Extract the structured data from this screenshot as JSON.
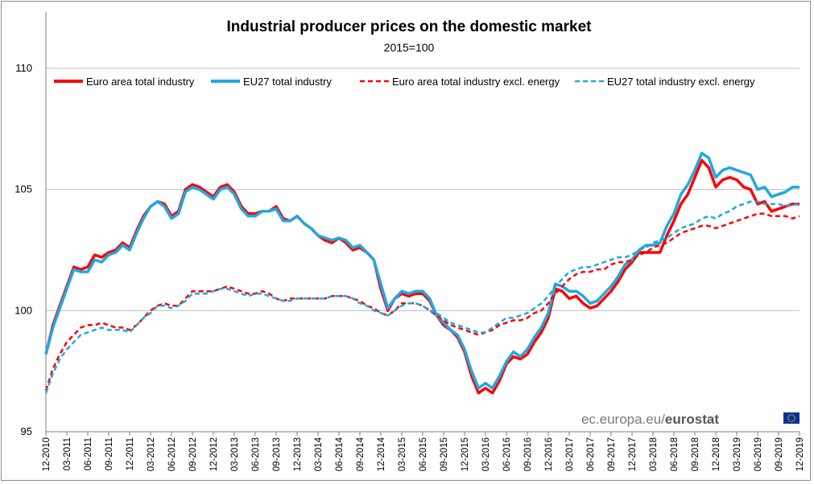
{
  "source": {
    "plain": "ec.europa.eu/",
    "bold": "eurostat"
  },
  "chart_data": {
    "type": "line",
    "title": "Industrial producer prices on the domestic market",
    "subtitle": "2015=100",
    "xlabel": "",
    "ylabel": "",
    "ylim": [
      95,
      110
    ],
    "yticks": [
      95,
      100,
      105,
      110
    ],
    "grid": true,
    "legend_position": "top",
    "start_month": "12-2010",
    "end_month": "12-2019",
    "xtick_labels": [
      "12-2010",
      "03-2011",
      "06-2011",
      "09-2011",
      "12-2011",
      "03-2012",
      "06-2012",
      "09-2012",
      "12-2012",
      "03-2013",
      "06-2013",
      "09-2013",
      "12-2013",
      "03-2014",
      "06-2014",
      "09-2014",
      "12-2014",
      "03-2015",
      "06-2015",
      "09-2015",
      "12-2015",
      "03-2016",
      "06-2016",
      "09-2016",
      "12-2016",
      "03-2017",
      "06-2017",
      "09-2017",
      "12-2017",
      "03-2018",
      "06-2018",
      "09-2018",
      "12-2018",
      "03-2019",
      "06-2019",
      "09-2019",
      "12-2019"
    ],
    "series": [
      {
        "name": "Euro area total industry",
        "color": "#ff0000",
        "dash": "solid",
        "values": [
          98.2,
          99.4,
          100.2,
          101.0,
          101.8,
          101.7,
          101.8,
          102.3,
          102.2,
          102.4,
          102.5,
          102.8,
          102.6,
          103.3,
          103.9,
          104.3,
          104.5,
          104.4,
          103.9,
          104.1,
          105.0,
          105.2,
          105.1,
          104.9,
          104.7,
          105.1,
          105.2,
          104.9,
          104.3,
          104.0,
          104.0,
          104.1,
          104.1,
          104.3,
          103.8,
          103.7,
          103.9,
          103.6,
          103.4,
          103.1,
          102.9,
          102.8,
          103.0,
          102.8,
          102.5,
          102.6,
          102.4,
          102.1,
          100.9,
          100.0,
          100.5,
          100.7,
          100.6,
          100.7,
          100.7,
          100.4,
          99.8,
          99.4,
          99.2,
          98.9,
          98.3,
          97.3,
          96.6,
          96.8,
          96.6,
          97.1,
          97.8,
          98.1,
          98.0,
          98.2,
          98.7,
          99.1,
          99.7,
          100.9,
          100.8,
          100.5,
          100.6,
          100.3,
          100.1,
          100.2,
          100.5,
          100.8,
          101.2,
          101.7,
          102.0,
          102.4,
          102.4,
          102.4,
          102.4,
          103.1,
          103.7,
          104.4,
          104.8,
          105.5,
          106.2,
          105.9,
          105.1,
          105.4,
          105.5,
          105.4,
          105.1,
          105.0,
          104.4,
          104.5,
          104.1,
          104.2,
          104.3,
          104.4,
          104.4
        ]
      },
      {
        "name": "EU27 total industry",
        "color": "#1fa9e1",
        "dash": "solid",
        "values": [
          98.2,
          99.3,
          100.1,
          100.9,
          101.7,
          101.6,
          101.6,
          102.1,
          102.0,
          102.3,
          102.4,
          102.7,
          102.5,
          103.2,
          103.8,
          104.3,
          104.5,
          104.3,
          103.8,
          104.0,
          104.9,
          105.1,
          105.0,
          104.8,
          104.6,
          105.0,
          105.1,
          104.8,
          104.2,
          103.9,
          103.9,
          104.1,
          104.1,
          104.2,
          103.7,
          103.7,
          103.9,
          103.6,
          103.4,
          103.1,
          103.0,
          102.9,
          103.0,
          102.9,
          102.6,
          102.7,
          102.4,
          102.1,
          101.1,
          100.1,
          100.5,
          100.8,
          100.7,
          100.8,
          100.8,
          100.5,
          99.8,
          99.5,
          99.2,
          99.0,
          98.4,
          97.5,
          96.8,
          97.0,
          96.8,
          97.3,
          97.9,
          98.3,
          98.1,
          98.4,
          98.9,
          99.3,
          99.9,
          101.1,
          101.0,
          100.8,
          100.8,
          100.6,
          100.3,
          100.4,
          100.7,
          101.0,
          101.4,
          101.9,
          102.1,
          102.5,
          102.7,
          102.7,
          102.8,
          103.5,
          104.0,
          104.8,
          105.2,
          105.8,
          106.5,
          106.3,
          105.5,
          105.8,
          105.9,
          105.8,
          105.7,
          105.6,
          105.0,
          105.1,
          104.7,
          104.8,
          104.9,
          105.1,
          105.1
        ]
      },
      {
        "name": "Euro area total industry excl. energy",
        "color": "#ff0000",
        "dash": "dashed",
        "values": [
          96.7,
          97.6,
          98.2,
          98.7,
          99.0,
          99.3,
          99.4,
          99.4,
          99.5,
          99.4,
          99.3,
          99.3,
          99.2,
          99.4,
          99.7,
          100.0,
          100.2,
          100.3,
          100.2,
          100.2,
          100.5,
          100.8,
          100.8,
          100.8,
          100.8,
          100.9,
          101.0,
          100.9,
          100.8,
          100.7,
          100.7,
          100.8,
          100.7,
          100.5,
          100.4,
          100.5,
          100.5,
          100.5,
          100.5,
          100.5,
          100.5,
          100.6,
          100.6,
          100.6,
          100.5,
          100.4,
          100.2,
          100.1,
          99.9,
          99.8,
          100.0,
          100.3,
          100.3,
          100.3,
          100.2,
          100.0,
          99.8,
          99.6,
          99.4,
          99.3,
          99.2,
          99.1,
          99.0,
          99.1,
          99.2,
          99.4,
          99.5,
          99.6,
          99.6,
          99.7,
          99.9,
          100.0,
          100.3,
          100.7,
          101.0,
          101.3,
          101.5,
          101.6,
          101.6,
          101.7,
          101.7,
          101.9,
          102.0,
          102.0,
          102.1,
          102.3,
          102.4,
          102.6,
          102.7,
          102.8,
          103.0,
          103.2,
          103.3,
          103.4,
          103.5,
          103.5,
          103.4,
          103.5,
          103.6,
          103.7,
          103.8,
          103.9,
          104.0,
          104.0,
          103.9,
          103.9,
          103.9,
          103.8,
          103.9
        ]
      },
      {
        "name": "EU27 total industry excl. energy",
        "color": "#1fa9e1",
        "dash": "dashed",
        "values": [
          96.6,
          97.4,
          98.0,
          98.4,
          98.7,
          99.0,
          99.1,
          99.2,
          99.3,
          99.2,
          99.2,
          99.2,
          99.1,
          99.4,
          99.7,
          99.9,
          100.2,
          100.2,
          100.1,
          100.2,
          100.4,
          100.7,
          100.7,
          100.7,
          100.8,
          100.9,
          100.9,
          100.8,
          100.7,
          100.6,
          100.7,
          100.7,
          100.6,
          100.5,
          100.4,
          100.4,
          100.5,
          100.5,
          100.5,
          100.5,
          100.5,
          100.6,
          100.6,
          100.6,
          100.5,
          100.3,
          100.2,
          100.0,
          99.9,
          99.8,
          100.0,
          100.2,
          100.3,
          100.3,
          100.2,
          100.0,
          99.9,
          99.7,
          99.5,
          99.4,
          99.3,
          99.2,
          99.1,
          99.1,
          99.3,
          99.5,
          99.7,
          99.7,
          99.8,
          99.9,
          100.1,
          100.3,
          100.6,
          101.0,
          101.3,
          101.6,
          101.7,
          101.8,
          101.8,
          101.9,
          102.0,
          102.1,
          102.2,
          102.2,
          102.3,
          102.5,
          102.6,
          102.8,
          102.9,
          103.0,
          103.2,
          103.4,
          103.5,
          103.6,
          103.8,
          103.9,
          103.8,
          104.0,
          104.1,
          104.3,
          104.4,
          104.5,
          104.5,
          104.4,
          104.4,
          104.4,
          104.3,
          104.4,
          104.4
        ]
      }
    ]
  }
}
